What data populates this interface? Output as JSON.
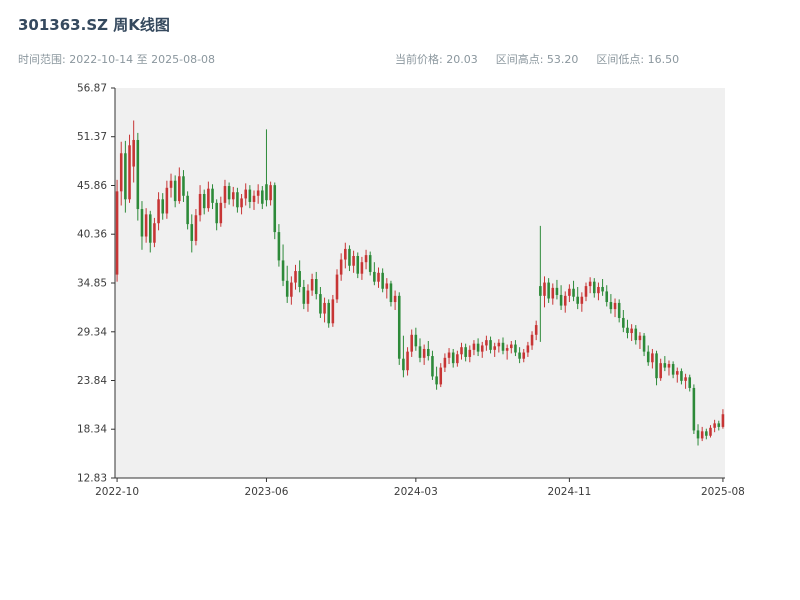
{
  "page": {
    "title": "301363.SZ 周K线图",
    "subtitle_left": "时间范围: 2022-10-14 至 2025-08-08",
    "stats_texts": [
      "当前价格: 20.03",
      "区间高点: 53.20",
      "区间低点: 16.50"
    ]
  },
  "chart_data": {
    "type": "candlestick",
    "title": "301363.SZ 周K线图",
    "interval": "weekly",
    "x_range": [
      "2022-10-14",
      "2025-08-08"
    ],
    "current_price": 20.03,
    "range_high": 53.2,
    "range_low": 16.5,
    "ylim": [
      12.83,
      56.87
    ],
    "y_ticks": [
      12.83,
      18.34,
      23.84,
      29.34,
      34.85,
      40.36,
      45.86,
      51.37,
      56.87
    ],
    "x_ticks": [
      {
        "index": 0,
        "label": "2022-10"
      },
      {
        "index": 36,
        "label": "2023-06"
      },
      {
        "index": 72,
        "label": "2024-03"
      },
      {
        "index": 109,
        "label": "2024-11"
      },
      {
        "index": 146,
        "label": "2025-08"
      }
    ],
    "up_color": "#c73535",
    "down_color": "#2d8a39",
    "plot_bg": "#f0f0f0",
    "grid": false,
    "legend": false,
    "ohlc_order": [
      "open",
      "high",
      "low",
      "close"
    ],
    "ohlc": [
      [
        35.8,
        46.5,
        35.0,
        45.2
      ],
      [
        45.2,
        50.8,
        43.6,
        49.5
      ],
      [
        49.5,
        50.9,
        42.8,
        44.3
      ],
      [
        44.3,
        51.6,
        43.9,
        50.4
      ],
      [
        48.0,
        53.2,
        46.2,
        51.0
      ],
      [
        51.0,
        51.8,
        41.9,
        43.2
      ],
      [
        43.2,
        44.1,
        38.6,
        40.1
      ],
      [
        40.1,
        43.3,
        39.4,
        42.6
      ],
      [
        42.6,
        43.0,
        38.3,
        39.4
      ],
      [
        39.4,
        42.2,
        38.9,
        41.6
      ],
      [
        41.6,
        45.1,
        40.8,
        44.3
      ],
      [
        44.3,
        45.0,
        42.0,
        42.7
      ],
      [
        42.7,
        46.4,
        42.1,
        45.6
      ],
      [
        45.6,
        47.2,
        44.5,
        46.4
      ],
      [
        46.4,
        47.0,
        43.4,
        44.1
      ],
      [
        44.1,
        47.9,
        43.8,
        46.9
      ],
      [
        46.9,
        47.6,
        44.0,
        44.7
      ],
      [
        44.7,
        45.2,
        40.9,
        41.5
      ],
      [
        41.5,
        42.6,
        38.3,
        39.6
      ],
      [
        39.6,
        43.2,
        39.1,
        42.5
      ],
      [
        42.5,
        45.9,
        41.8,
        44.9
      ],
      [
        44.9,
        45.4,
        42.6,
        43.3
      ],
      [
        43.3,
        46.3,
        42.9,
        45.5
      ],
      [
        45.5,
        46.0,
        43.2,
        43.9
      ],
      [
        43.9,
        44.3,
        40.8,
        41.6
      ],
      [
        41.6,
        44.6,
        41.2,
        43.9
      ],
      [
        43.9,
        46.5,
        43.3,
        45.8
      ],
      [
        45.8,
        46.2,
        43.7,
        44.3
      ],
      [
        44.3,
        45.7,
        43.5,
        45.1
      ],
      [
        45.1,
        45.6,
        42.8,
        43.4
      ],
      [
        43.4,
        44.9,
        42.6,
        44.4
      ],
      [
        44.4,
        46.1,
        43.6,
        45.4
      ],
      [
        45.4,
        45.9,
        43.3,
        44.0
      ],
      [
        44.0,
        45.3,
        43.1,
        44.7
      ],
      [
        44.7,
        46.0,
        43.8,
        45.3
      ],
      [
        45.3,
        45.8,
        43.2,
        43.8
      ],
      [
        46.0,
        52.2,
        43.5,
        44.2
      ],
      [
        44.2,
        46.3,
        43.6,
        45.9
      ],
      [
        45.9,
        46.2,
        39.8,
        40.6
      ],
      [
        40.6,
        41.5,
        36.7,
        37.4
      ],
      [
        37.4,
        39.2,
        34.5,
        35.1
      ],
      [
        35.1,
        36.8,
        32.6,
        33.3
      ],
      [
        33.3,
        35.6,
        32.4,
        34.9
      ],
      [
        34.9,
        36.9,
        34.1,
        36.2
      ],
      [
        36.2,
        37.4,
        33.8,
        34.4
      ],
      [
        34.4,
        35.2,
        31.9,
        32.5
      ],
      [
        32.5,
        34.7,
        31.6,
        34.0
      ],
      [
        34.0,
        35.9,
        33.4,
        35.3
      ],
      [
        35.3,
        36.1,
        33.0,
        33.6
      ],
      [
        33.6,
        34.4,
        30.9,
        31.4
      ],
      [
        31.4,
        33.2,
        30.4,
        32.6
      ],
      [
        32.6,
        33.0,
        29.8,
        30.3
      ],
      [
        30.3,
        33.5,
        29.9,
        33.0
      ],
      [
        33.0,
        36.4,
        32.6,
        35.8
      ],
      [
        35.8,
        38.2,
        35.1,
        37.5
      ],
      [
        37.5,
        39.4,
        36.5,
        38.7
      ],
      [
        38.7,
        39.1,
        36.2,
        36.8
      ],
      [
        36.8,
        38.5,
        36.0,
        37.9
      ],
      [
        37.9,
        38.3,
        35.4,
        35.9
      ],
      [
        35.9,
        37.8,
        35.2,
        37.2
      ],
      [
        37.2,
        38.6,
        36.4,
        38.0
      ],
      [
        38.0,
        38.4,
        35.7,
        36.1
      ],
      [
        36.1,
        37.2,
        34.6,
        35.0
      ],
      [
        35.0,
        36.6,
        34.3,
        36.0
      ],
      [
        36.0,
        36.5,
        33.8,
        34.2
      ],
      [
        34.2,
        35.4,
        33.1,
        34.8
      ],
      [
        34.8,
        35.1,
        32.2,
        32.7
      ],
      [
        32.7,
        34.0,
        31.8,
        33.4
      ],
      [
        33.4,
        33.8,
        25.6,
        26.3
      ],
      [
        26.3,
        28.9,
        24.2,
        25.0
      ],
      [
        25.0,
        27.6,
        24.4,
        27.1
      ],
      [
        27.1,
        29.6,
        26.5,
        29.0
      ],
      [
        29.0,
        29.8,
        27.2,
        27.7
      ],
      [
        27.7,
        28.6,
        25.9,
        26.4
      ],
      [
        26.4,
        27.9,
        25.6,
        27.4
      ],
      [
        27.4,
        28.3,
        26.1,
        26.6
      ],
      [
        26.6,
        27.2,
        23.9,
        24.3
      ],
      [
        24.3,
        25.4,
        22.8,
        23.4
      ],
      [
        23.4,
        25.8,
        23.1,
        25.3
      ],
      [
        25.3,
        26.9,
        24.8,
        26.4
      ],
      [
        26.4,
        27.5,
        25.7,
        27.0
      ],
      [
        27.0,
        27.4,
        25.3,
        25.8
      ],
      [
        25.8,
        27.2,
        25.4,
        26.8
      ],
      [
        26.8,
        28.1,
        26.2,
        27.6
      ],
      [
        27.6,
        28.0,
        26.0,
        26.5
      ],
      [
        26.5,
        27.8,
        25.9,
        27.3
      ],
      [
        27.3,
        28.4,
        26.7,
        28.0
      ],
      [
        28.0,
        28.6,
        26.6,
        27.1
      ],
      [
        27.1,
        28.2,
        26.4,
        27.8
      ],
      [
        27.8,
        28.9,
        27.2,
        28.4
      ],
      [
        28.4,
        28.8,
        26.9,
        27.3
      ],
      [
        27.3,
        28.1,
        26.5,
        27.7
      ],
      [
        27.7,
        28.5,
        27.0,
        28.1
      ],
      [
        28.1,
        28.7,
        26.8,
        27.2
      ],
      [
        27.2,
        27.9,
        26.2,
        27.5
      ],
      [
        27.5,
        28.3,
        26.9,
        27.9
      ],
      [
        27.9,
        28.4,
        26.6,
        27.0
      ],
      [
        27.0,
        27.6,
        25.8,
        26.3
      ],
      [
        26.3,
        27.4,
        25.9,
        27.0
      ],
      [
        27.0,
        28.2,
        26.5,
        27.8
      ],
      [
        27.8,
        29.4,
        27.3,
        29.0
      ],
      [
        29.0,
        30.6,
        28.4,
        30.1
      ],
      [
        34.5,
        41.3,
        28.2,
        33.4
      ],
      [
        33.4,
        35.6,
        32.1,
        34.9
      ],
      [
        34.9,
        35.4,
        32.6,
        33.1
      ],
      [
        33.1,
        34.8,
        32.4,
        34.3
      ],
      [
        34.3,
        35.2,
        33.0,
        33.5
      ],
      [
        33.5,
        34.6,
        31.8,
        32.3
      ],
      [
        32.3,
        33.9,
        31.5,
        33.4
      ],
      [
        33.4,
        34.7,
        32.7,
        34.2
      ],
      [
        34.2,
        35.1,
        32.8,
        33.3
      ],
      [
        33.3,
        34.4,
        31.9,
        32.5
      ],
      [
        32.5,
        33.8,
        31.6,
        33.3
      ],
      [
        33.3,
        34.9,
        32.8,
        34.5
      ],
      [
        34.5,
        35.5,
        33.7,
        35.0
      ],
      [
        35.0,
        35.4,
        33.2,
        33.7
      ],
      [
        33.7,
        34.9,
        32.9,
        34.4
      ],
      [
        34.4,
        35.3,
        33.4,
        33.9
      ],
      [
        33.9,
        34.6,
        32.2,
        32.7
      ],
      [
        32.7,
        33.6,
        31.4,
        31.9
      ],
      [
        31.9,
        33.1,
        31.0,
        32.6
      ],
      [
        32.6,
        33.0,
        30.4,
        30.9
      ],
      [
        30.9,
        31.8,
        29.3,
        29.8
      ],
      [
        29.8,
        30.7,
        28.6,
        29.2
      ],
      [
        29.2,
        30.2,
        28.3,
        29.7
      ],
      [
        29.7,
        30.1,
        27.9,
        28.4
      ],
      [
        28.4,
        29.3,
        27.4,
        28.9
      ],
      [
        28.9,
        29.2,
        26.6,
        27.1
      ],
      [
        27.1,
        27.8,
        25.5,
        25.9
      ],
      [
        25.9,
        27.4,
        25.2,
        26.9
      ],
      [
        26.9,
        27.2,
        23.3,
        24.1
      ],
      [
        24.1,
        26.3,
        23.8,
        25.8
      ],
      [
        25.8,
        26.6,
        24.9,
        25.3
      ],
      [
        25.3,
        26.1,
        24.4,
        25.7
      ],
      [
        25.7,
        26.0,
        24.1,
        24.5
      ],
      [
        24.5,
        25.3,
        23.6,
        24.9
      ],
      [
        24.9,
        25.2,
        23.4,
        23.8
      ],
      [
        23.8,
        24.6,
        22.9,
        24.2
      ],
      [
        24.2,
        24.5,
        22.6,
        23.0
      ],
      [
        23.0,
        23.4,
        17.8,
        18.2
      ],
      [
        18.2,
        18.9,
        16.5,
        17.3
      ],
      [
        17.3,
        18.6,
        17.0,
        18.1
      ],
      [
        18.1,
        18.4,
        17.2,
        17.6
      ],
      [
        17.6,
        18.8,
        17.4,
        18.5
      ],
      [
        18.5,
        19.4,
        18.0,
        19.0
      ],
      [
        19.0,
        19.3,
        18.2,
        18.6
      ],
      [
        18.6,
        20.6,
        18.4,
        20.03
      ]
    ]
  }
}
